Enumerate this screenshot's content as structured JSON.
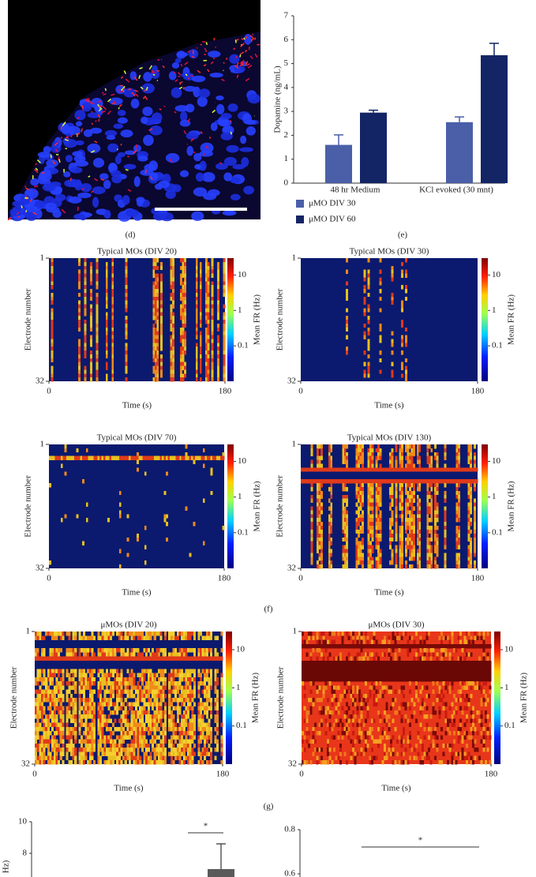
{
  "panel_labels": [
    "(d)",
    "(e)",
    "(f)",
    "(g)"
  ],
  "chart_data": [
    {
      "type": "bar",
      "ylabel": "Dopamine (ng/mL)",
      "categories": [
        "48 hr Medium",
        "KCl evoked (30 mnt)"
      ],
      "series": [
        {
          "name": "μMO DIV 30",
          "color": "#4a5fa8",
          "values": [
            1.6,
            2.55
          ],
          "errors": [
            0.42,
            0.22
          ]
        },
        {
          "name": "μMO DIV 60",
          "color": "#142566",
          "values": [
            2.95,
            5.35
          ],
          "errors": [
            0.1,
            0.5
          ]
        }
      ],
      "ylim": [
        0,
        7
      ],
      "yticks": [
        0,
        1,
        2,
        3,
        4,
        5,
        6,
        7
      ]
    },
    {
      "type": "heatmap",
      "title": "Typical MOs (DIV 20)",
      "xlabel": "Time (s)",
      "ylabel": "Electrode number",
      "xlim": [
        0,
        180
      ],
      "xticks": [
        0,
        180
      ],
      "ylim": [
        1,
        32
      ],
      "yticks": [
        1,
        32
      ],
      "colorbar_label": "Mean FR (Hz)",
      "clim": [
        0.01,
        30
      ],
      "cticks": [
        10,
        1,
        0.1
      ],
      "clog": true
    },
    {
      "type": "heatmap",
      "title": "Typical MOs (DIV 30)",
      "xlabel": "Time (s)",
      "ylabel": "Electrode number",
      "xlim": [
        0,
        180
      ],
      "xticks": [
        0,
        180
      ],
      "ylim": [
        1,
        32
      ],
      "yticks": [
        1,
        32
      ],
      "colorbar_label": "Mean FR (Hz)",
      "clim": [
        0.01,
        30
      ],
      "cticks": [
        10,
        1,
        0.1
      ],
      "clog": true
    },
    {
      "type": "heatmap",
      "title": "Typical MOs (DIV 70)",
      "xlabel": "Time (s)",
      "ylabel": "Electrode number",
      "xlim": [
        0,
        180
      ],
      "xticks": [
        0,
        180
      ],
      "ylim": [
        1,
        32
      ],
      "yticks": [
        1,
        32
      ],
      "colorbar_label": "Mean FR (Hz)",
      "clim": [
        0.01,
        30
      ],
      "cticks": [
        10,
        1,
        0.1
      ],
      "clog": true
    },
    {
      "type": "heatmap",
      "title": "Typical MOs (DIV 130)",
      "xlabel": "Time (s)",
      "ylabel": "Electrode number",
      "xlim": [
        0,
        180
      ],
      "xticks": [
        0,
        180
      ],
      "ylim": [
        1,
        32
      ],
      "yticks": [
        1,
        32
      ],
      "colorbar_label": "Mean FR (Hz)",
      "clim": [
        0.01,
        30
      ],
      "cticks": [
        10,
        1,
        0.1
      ],
      "clog": true
    },
    {
      "type": "heatmap",
      "title": "μMOs (DIV 20)",
      "xlabel": "Time (s)",
      "ylabel": "Electrode number",
      "xlim": [
        0,
        180
      ],
      "xticks": [
        0,
        180
      ],
      "ylim": [
        1,
        32
      ],
      "yticks": [
        1,
        32
      ],
      "colorbar_label": "Mean FR (Hz)",
      "clim": [
        0.01,
        30
      ],
      "cticks": [
        10,
        1,
        0.1
      ],
      "clog": true
    },
    {
      "type": "heatmap",
      "title": "μMOs (DIV 30)",
      "xlabel": "Time (s)",
      "ylabel": "Electrode number",
      "xlim": [
        0,
        180
      ],
      "xticks": [
        0,
        180
      ],
      "ylim": [
        1,
        32
      ],
      "yticks": [
        1,
        32
      ],
      "colorbar_label": "Mean FR (Hz)",
      "clim": [
        0.01,
        30
      ],
      "cticks": [
        10,
        1,
        0.1
      ],
      "clog": true
    },
    {
      "type": "bar",
      "ylabel": "Hz)",
      "categories": [
        null
      ],
      "series": [
        {
          "color": "#5a5a5a",
          "values": [
            7
          ],
          "errors": [
            1.6
          ]
        }
      ],
      "ylim": [
        0,
        10
      ],
      "yticks": [
        8,
        10
      ],
      "annotation": "*"
    },
    {
      "type": "bar",
      "ylim": [
        0,
        0.8
      ],
      "yticks": [
        0.6,
        0.8
      ],
      "annotation": "*"
    }
  ]
}
